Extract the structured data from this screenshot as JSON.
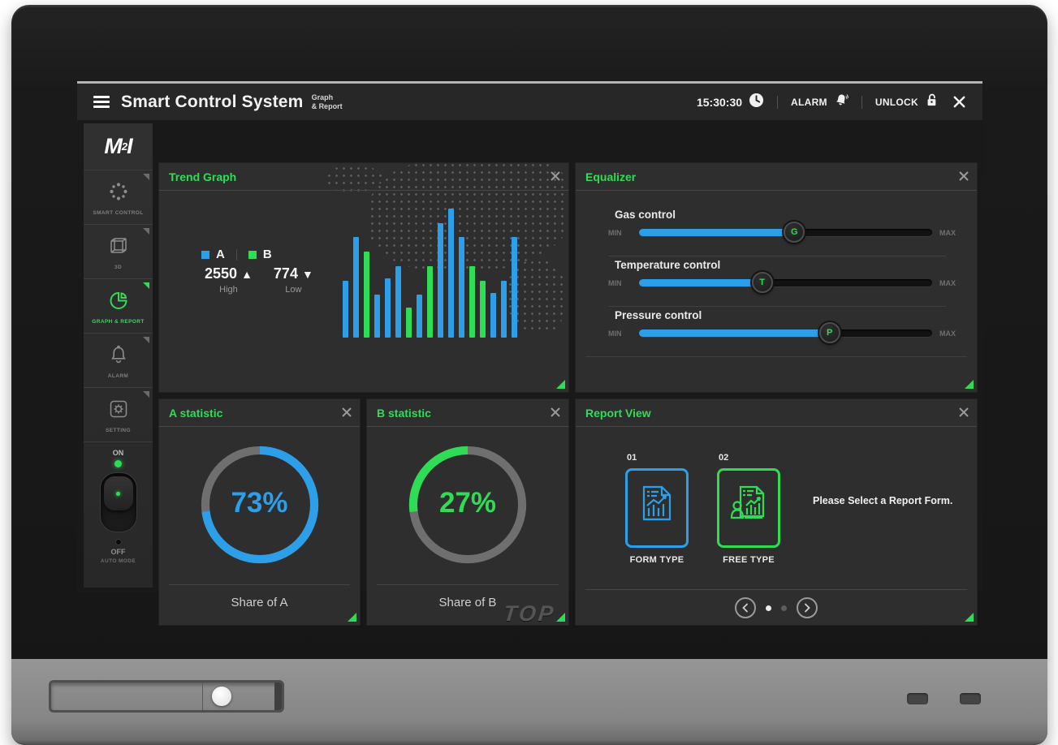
{
  "topbar": {
    "menu_icon": "hamburger-icon",
    "title": "Smart Control System",
    "subtitle_line1": "Graph",
    "subtitle_line2": "& Report",
    "time": "15:30:30",
    "time_icon": "clock-icon",
    "alarm_label": "ALARM",
    "alarm_icon": "bell-icon",
    "unlock_label": "UNLOCK",
    "unlock_icon": "padlock-open-icon",
    "close_icon": "close-icon"
  },
  "sidebar": {
    "logo_text": "M2I",
    "items": [
      {
        "label": "SMART CONTROL",
        "icon": "dotted-ring-icon",
        "active": false
      },
      {
        "label": "3D",
        "icon": "cube-icon",
        "active": false
      },
      {
        "label": "GRAPH & REPORT",
        "icon": "pie-chart-icon",
        "active": true
      },
      {
        "label": "ALARM",
        "icon": "bell-icon",
        "active": false
      },
      {
        "label": "SETTING",
        "icon": "gear-icon",
        "active": false
      }
    ],
    "power_switch": {
      "on_label": "ON",
      "off_label": "OFF",
      "mode_label": "AUTO MODE",
      "state": "ON"
    }
  },
  "panels": {
    "trend_graph": {
      "title": "Trend Graph",
      "legend": [
        {
          "name": "A",
          "color": "#2d9fe8"
        },
        {
          "name": "B",
          "color": "#2edd55"
        }
      ],
      "high_value": "2550",
      "high_arrow": "▲",
      "high_label": "High",
      "low_value": "774",
      "low_arrow": "▼",
      "low_label": "Low"
    },
    "equalizer": {
      "title": "Equalizer",
      "sliders": [
        {
          "label": "Gas control",
          "handle": "G",
          "min": "MIN",
          "max": "MAX",
          "percent": 53
        },
        {
          "label": "Temperature control",
          "handle": "T",
          "min": "MIN",
          "max": "MAX",
          "percent": 42
        },
        {
          "label": "Pressure control",
          "handle": "P",
          "min": "MIN",
          "max": "MAX",
          "percent": 65
        }
      ]
    },
    "a_statistic": {
      "title": "A statistic",
      "value": "73%",
      "percent": 73,
      "direction": "cw",
      "color": "#2d9fe8",
      "track_color": "#6f6f6f",
      "caption": "Share of A"
    },
    "b_statistic": {
      "title": "B statistic",
      "value": "27%",
      "percent": 27,
      "direction": "ccw",
      "color": "#2edd55",
      "track_color": "#6f6f6f",
      "caption": "Share of B"
    },
    "report_view": {
      "title": "Report View",
      "cards": [
        {
          "index": "01",
          "label": "FORM TYPE",
          "color": "#2d9fe8",
          "icon": "report-chart-doc-icon"
        },
        {
          "index": "02",
          "label": "FREE TYPE",
          "color": "#2edd55",
          "icon": "report-person-doc-icon"
        }
      ],
      "message": "Please Select a Report Form."
    }
  },
  "device": {
    "front_logo": "TOP"
  },
  "colors": {
    "green": "#2edd55",
    "blue": "#2d9fe8"
  },
  "chart_data": [
    {
      "type": "bar",
      "title": "Trend Graph",
      "series": [
        {
          "name": "A",
          "color": "#2d9fe8"
        },
        {
          "name": "B",
          "color": "#2edd55"
        }
      ],
      "bars": [
        {
          "series": "A",
          "value": 42
        },
        {
          "series": "A",
          "value": 75
        },
        {
          "series": "B",
          "value": 64
        },
        {
          "series": "A",
          "value": 32
        },
        {
          "series": "A",
          "value": 44
        },
        {
          "series": "A",
          "value": 53
        },
        {
          "series": "B",
          "value": 22
        },
        {
          "series": "A",
          "value": 32
        },
        {
          "series": "B",
          "value": 53
        },
        {
          "series": "A",
          "value": 85
        },
        {
          "series": "A",
          "value": 96
        },
        {
          "series": "A",
          "value": 75
        },
        {
          "series": "B",
          "value": 53
        },
        {
          "series": "B",
          "value": 42
        },
        {
          "series": "A",
          "value": 33
        },
        {
          "series": "A",
          "value": 42
        },
        {
          "series": "A",
          "value": 75
        }
      ],
      "high": 2550,
      "low": 774,
      "ylim": [
        0,
        100
      ],
      "grid": false,
      "legend_position": "left"
    },
    {
      "type": "pie",
      "title": "A statistic",
      "labels": [
        "Share of A",
        "rest"
      ],
      "values": [
        73,
        27
      ],
      "donut": true
    },
    {
      "type": "pie",
      "title": "B statistic",
      "labels": [
        "Share of B",
        "rest"
      ],
      "values": [
        27,
        73
      ],
      "donut": true
    }
  ]
}
